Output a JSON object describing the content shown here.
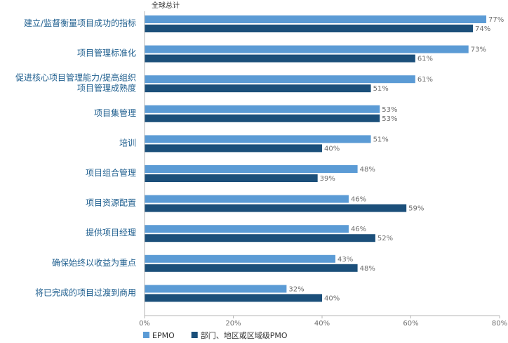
{
  "chart_data": {
    "type": "bar",
    "orientation": "horizontal",
    "title": "",
    "subtitle": "全球总计",
    "categories": [
      [
        "建立/监督衡量项目成功的指标"
      ],
      [
        "项目管理标准化"
      ],
      [
        "促进核心项目管理能力/提高组织",
        "项目管理成熟度"
      ],
      [
        "项目集管理"
      ],
      [
        "培训"
      ],
      [
        "项目组合管理"
      ],
      [
        "项目资源配置"
      ],
      [
        "提供项目经理"
      ],
      [
        "确保始终以收益为重点"
      ],
      [
        "将已完成的项目过渡到商用"
      ]
    ],
    "series": [
      {
        "name": "EPMO",
        "color": "#5b9bd5",
        "values": [
          77,
          73,
          61,
          53,
          51,
          48,
          46,
          46,
          43,
          32
        ]
      },
      {
        "name": "部门、地区或区域级PMO",
        "color": "#1b4f7a",
        "values": [
          74,
          61,
          51,
          53,
          40,
          39,
          59,
          52,
          48,
          40
        ]
      }
    ],
    "xlim": [
      0,
      80
    ],
    "xticks": [
      0,
      20,
      40,
      60,
      80
    ],
    "value_suffix": "%",
    "grid": false,
    "legend_position": "bottom-left"
  }
}
